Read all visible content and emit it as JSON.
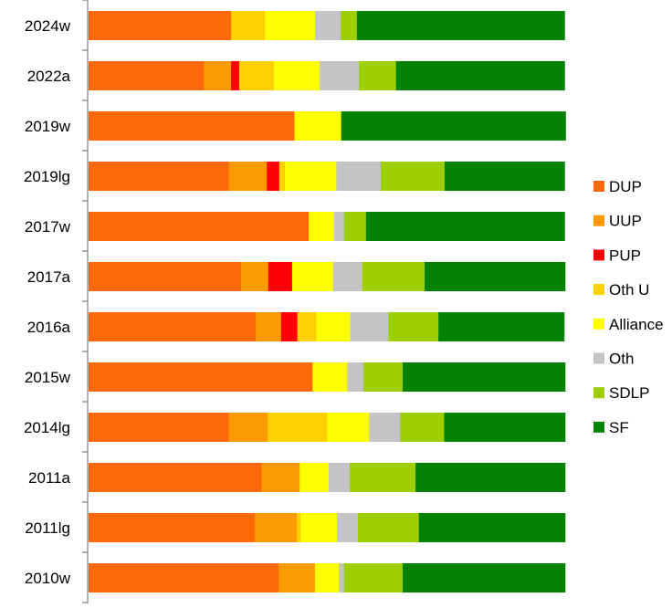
{
  "chart_data": {
    "type": "bar",
    "orientation": "horizontal",
    "stacked": "percent",
    "categories": [
      "2024w",
      "2022a",
      "2019w",
      "2019lg",
      "2017w",
      "2017a",
      "2016a",
      "2015w",
      "2014lg",
      "2011a",
      "2011lg",
      "2010w"
    ],
    "series": [
      {
        "name": "DUP",
        "color": "#FD6808",
        "values": [
          29.9,
          24.2,
          43.2,
          29.4,
          46.2,
          32.0,
          35.1,
          47.0,
          29.4,
          36.3,
          34.9,
          39.9
        ]
      },
      {
        "name": "UUP",
        "color": "#FC9A04",
        "values": [
          0,
          5.7,
          0,
          8.0,
          0,
          5.7,
          5.3,
          0,
          8.2,
          8.0,
          8.8,
          7.6
        ]
      },
      {
        "name": "PUP",
        "color": "#FE0006",
        "values": [
          0,
          1.7,
          0,
          2.6,
          0,
          5.0,
          3.4,
          0,
          0,
          0,
          0,
          0
        ]
      },
      {
        "name": "Oth U",
        "color": "#FDD002",
        "values": [
          7.1,
          7.3,
          0,
          1.2,
          0,
          0,
          4.0,
          0,
          12.5,
          0,
          0.8,
          0
        ]
      },
      {
        "name": "Alliance",
        "color": "#FEFE02",
        "values": [
          10.5,
          9.6,
          9.8,
          10.8,
          5.3,
          8.6,
          7.1,
          7.3,
          8.8,
          6.1,
          7.6,
          5.0
        ]
      },
      {
        "name": "Oth",
        "color": "#C4C3C5",
        "values": [
          5.4,
          8.2,
          0,
          9.3,
          2.1,
          6.1,
          8.0,
          3.4,
          6.5,
          4.4,
          4.4,
          1.1
        ]
      },
      {
        "name": "SDLP",
        "color": "#9DCF02",
        "values": [
          3.4,
          7.8,
          0,
          13.4,
          4.6,
          13.1,
          10.5,
          8.2,
          9.2,
          13.8,
          12.8,
          12.3
        ]
      },
      {
        "name": "SF",
        "color": "#048204",
        "values": [
          43.6,
          35.4,
          47.1,
          25.2,
          41.7,
          29.5,
          26.4,
          34.1,
          25.4,
          31.4,
          30.7,
          34.1
        ]
      }
    ],
    "xlim": [
      0,
      100
    ],
    "grid": false,
    "legend_position": "right"
  }
}
